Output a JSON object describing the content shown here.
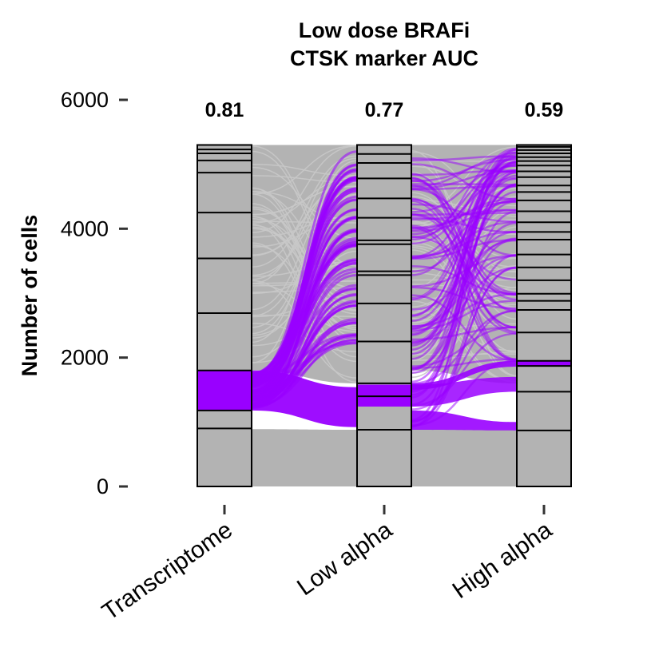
{
  "chart_data": {
    "type": "alluvial",
    "title": "Low dose BRAFi\nCTSK marker AUC",
    "title_lines": [
      "Low dose BRAFi",
      "CTSK marker AUC"
    ],
    "ylabel": "Number of cells",
    "xlabel": "",
    "ylim": [
      0,
      6000
    ],
    "yticks": [
      0,
      2000,
      4000,
      6000
    ],
    "ytick_labels": [
      "0",
      "2000",
      "4000",
      "6000"
    ],
    "categories": [
      "Transcriptome",
      "Low alpha",
      "High alpha"
    ],
    "auc_labels": [
      "0.81",
      "0.77",
      "0.59"
    ],
    "total_cells": 5300,
    "grid": false,
    "legend": "none",
    "colors": {
      "highlight": "#9900ff",
      "background_flow": "#b3b3b3",
      "cluster_fill": "#b3b3b3",
      "cluster_border": "#000000"
    },
    "cluster_boundaries": [
      [
        0,
        900,
        1180,
        1800,
        2690,
        3540,
        4250,
        4870,
        5060,
        5170,
        5230,
        5300
      ],
      [
        0,
        880,
        1400,
        1600,
        2250,
        2840,
        3280,
        3340,
        3760,
        3820,
        4170,
        4470,
        4780,
        5020,
        5160,
        5300
      ],
      [
        0,
        870,
        1470,
        1870,
        1950,
        2390,
        2740,
        2880,
        2990,
        3200,
        3400,
        3600,
        3830,
        3950,
        4100,
        4270,
        4440,
        4570,
        4670,
        4800,
        4890,
        4980,
        5050,
        5110,
        5170,
        5220,
        5270,
        5300
      ]
    ],
    "highlighted_bands": [
      [
        1180,
        1800
      ],
      [
        1240,
        1580
      ],
      [
        1860,
        1950
      ]
    ]
  }
}
